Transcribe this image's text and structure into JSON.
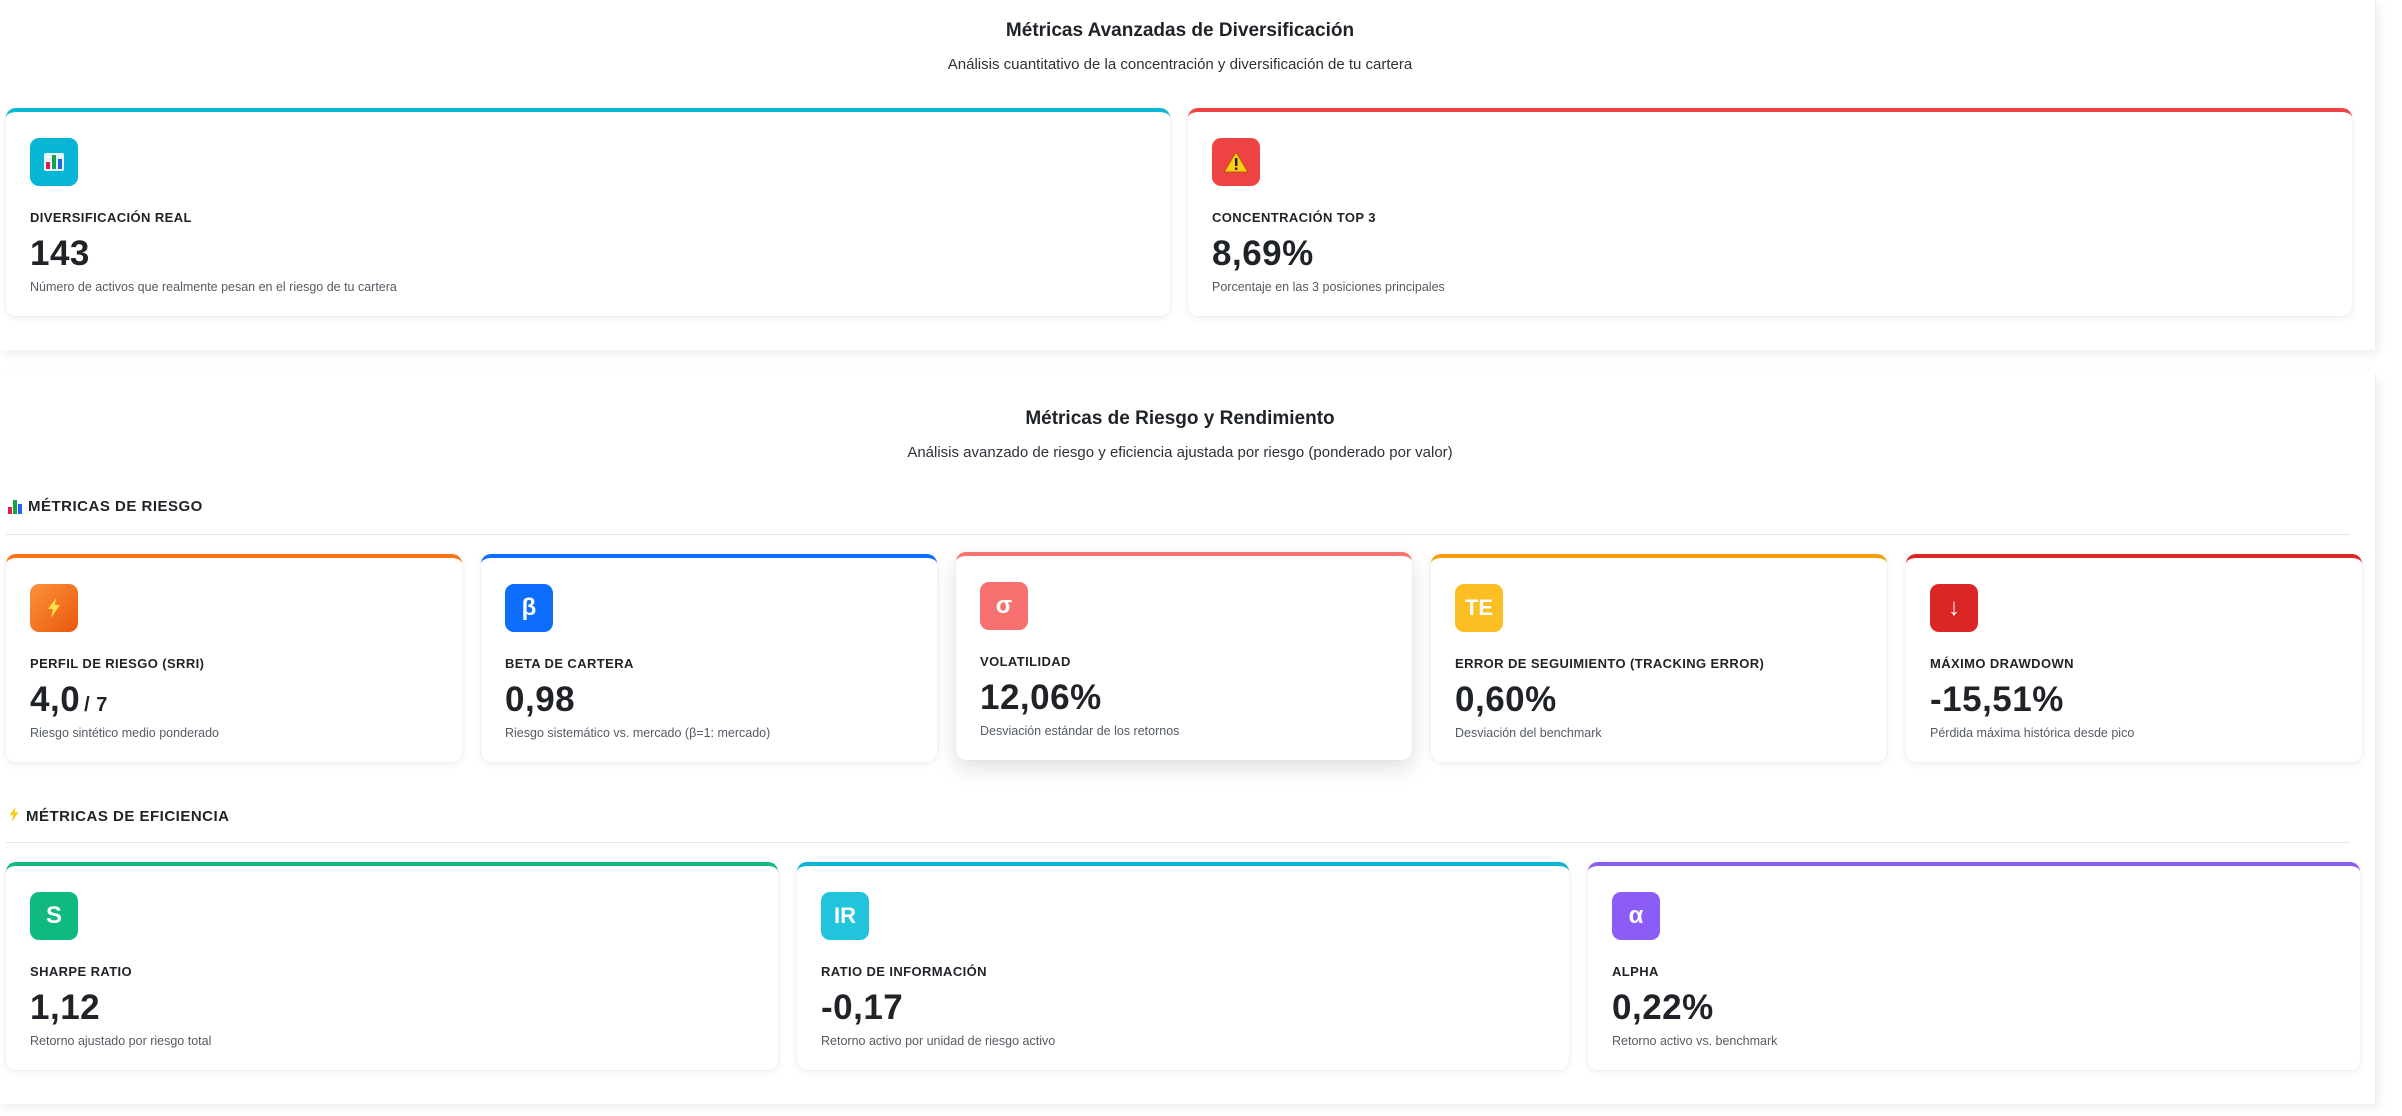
{
  "diversification": {
    "title": "Métricas Avanzadas de Diversificación",
    "subtitle": "Análisis cuantitativo de la concentración y diversificación de tu cartera",
    "cards": [
      {
        "icon": "bar-chart-icon",
        "color": "#06b6d4",
        "label": "DIVERSIFICACIÓN REAL",
        "value": "143",
        "desc": "Número de activos que realmente pesan en el riesgo de tu cartera"
      },
      {
        "icon": "warning-icon",
        "color": "#ef4444",
        "label": "CONCENTRACIÓN TOP 3",
        "value": "8,69%",
        "desc": "Porcentaje en las 3 posiciones principales"
      }
    ]
  },
  "risk_return": {
    "title": "Métricas de Riesgo y Rendimiento",
    "subtitle": "Análisis avanzado de riesgo y eficiencia ajustada por riesgo (ponderado por valor)",
    "risk_section": {
      "heading": "MÉTRICAS DE RIESGO",
      "icon": "bar-chart-icon",
      "cards": [
        {
          "icon": "lightning-icon",
          "icon_text": "⚡",
          "color": "#f97316",
          "label": "PERFIL DE RIESGO (SRRI)",
          "value": "4,0",
          "suffix": "/ 7",
          "desc": "Riesgo sintético medio ponderado"
        },
        {
          "icon": "beta-icon",
          "icon_text": "β",
          "color": "#0d6efd",
          "label": "BETA DE CARTERA",
          "value": "0,98",
          "suffix": "",
          "desc": "Riesgo sistemático vs. mercado (β=1: mercado)"
        },
        {
          "icon": "sigma-icon",
          "icon_text": "σ",
          "color": "#f87171",
          "label": "VOLATILIDAD",
          "value": "12,06%",
          "suffix": "",
          "desc": "Desviación estándar de los retornos"
        },
        {
          "icon": "tracking-error-icon",
          "icon_text": "TE",
          "color": "#f59e0b",
          "label": "ERROR DE SEGUIMIENTO (TRACKING ERROR)",
          "value": "0,60%",
          "suffix": "",
          "desc": "Desviación del benchmark"
        },
        {
          "icon": "arrow-down-icon",
          "icon_text": "↓",
          "color": "#dc2626",
          "label": "MÁXIMO DRAWDOWN",
          "value": "-15,51%",
          "suffix": "",
          "desc": "Pérdida máxima histórica desde pico"
        }
      ]
    },
    "efficiency_section": {
      "heading": "MÉTRICAS DE EFICIENCIA",
      "icon": "lightning-icon",
      "cards": [
        {
          "icon": "sharpe-icon",
          "icon_text": "S",
          "color": "#10b981",
          "label": "SHARPE RATIO",
          "value": "1,12",
          "desc": "Retorno ajustado por riesgo total"
        },
        {
          "icon": "information-ratio-icon",
          "icon_text": "IR",
          "color": "#06b6d4",
          "label": "RATIO DE INFORMACIÓN",
          "value": "-0,17",
          "desc": "Retorno activo por unidad de riesgo activo"
        },
        {
          "icon": "alpha-icon",
          "icon_text": "α",
          "color": "#8b5cf6",
          "label": "ALPHA",
          "value": "0,22%",
          "desc": "Retorno activo vs. benchmark"
        }
      ]
    }
  }
}
